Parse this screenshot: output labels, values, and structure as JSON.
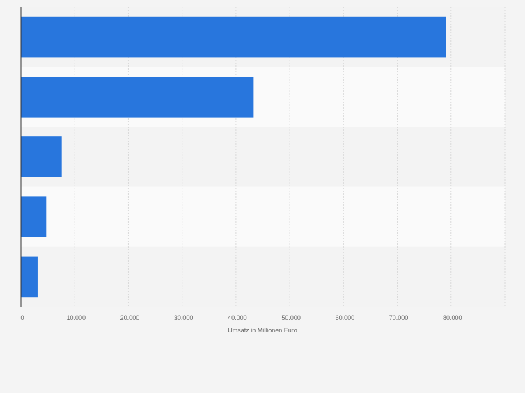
{
  "chart_data": {
    "type": "bar",
    "orientation": "horizontal",
    "categories": [
      "",
      "",
      "",
      "",
      ""
    ],
    "values": [
      79100,
      43300,
      7600,
      4700,
      3100
    ],
    "xlabel": "Umsatz in Millionen Euro",
    "ylabel": "",
    "xlim": [
      0,
      90000
    ],
    "xticks": [
      0,
      10000,
      20000,
      30000,
      40000,
      50000,
      60000,
      70000,
      80000
    ],
    "xtick_labels": [
      "0",
      "10.000",
      "20.000",
      "30.000",
      "40.000",
      "50.000",
      "60.000",
      "70.000",
      "80.000"
    ],
    "grid": true,
    "legend": "none",
    "colors": {
      "bar": "#2876dd",
      "band_odd": "#f3f3f3",
      "band_even": "#fafafa",
      "grid": "#d9d9d9",
      "axis": "#333333",
      "text": "#666666"
    }
  }
}
